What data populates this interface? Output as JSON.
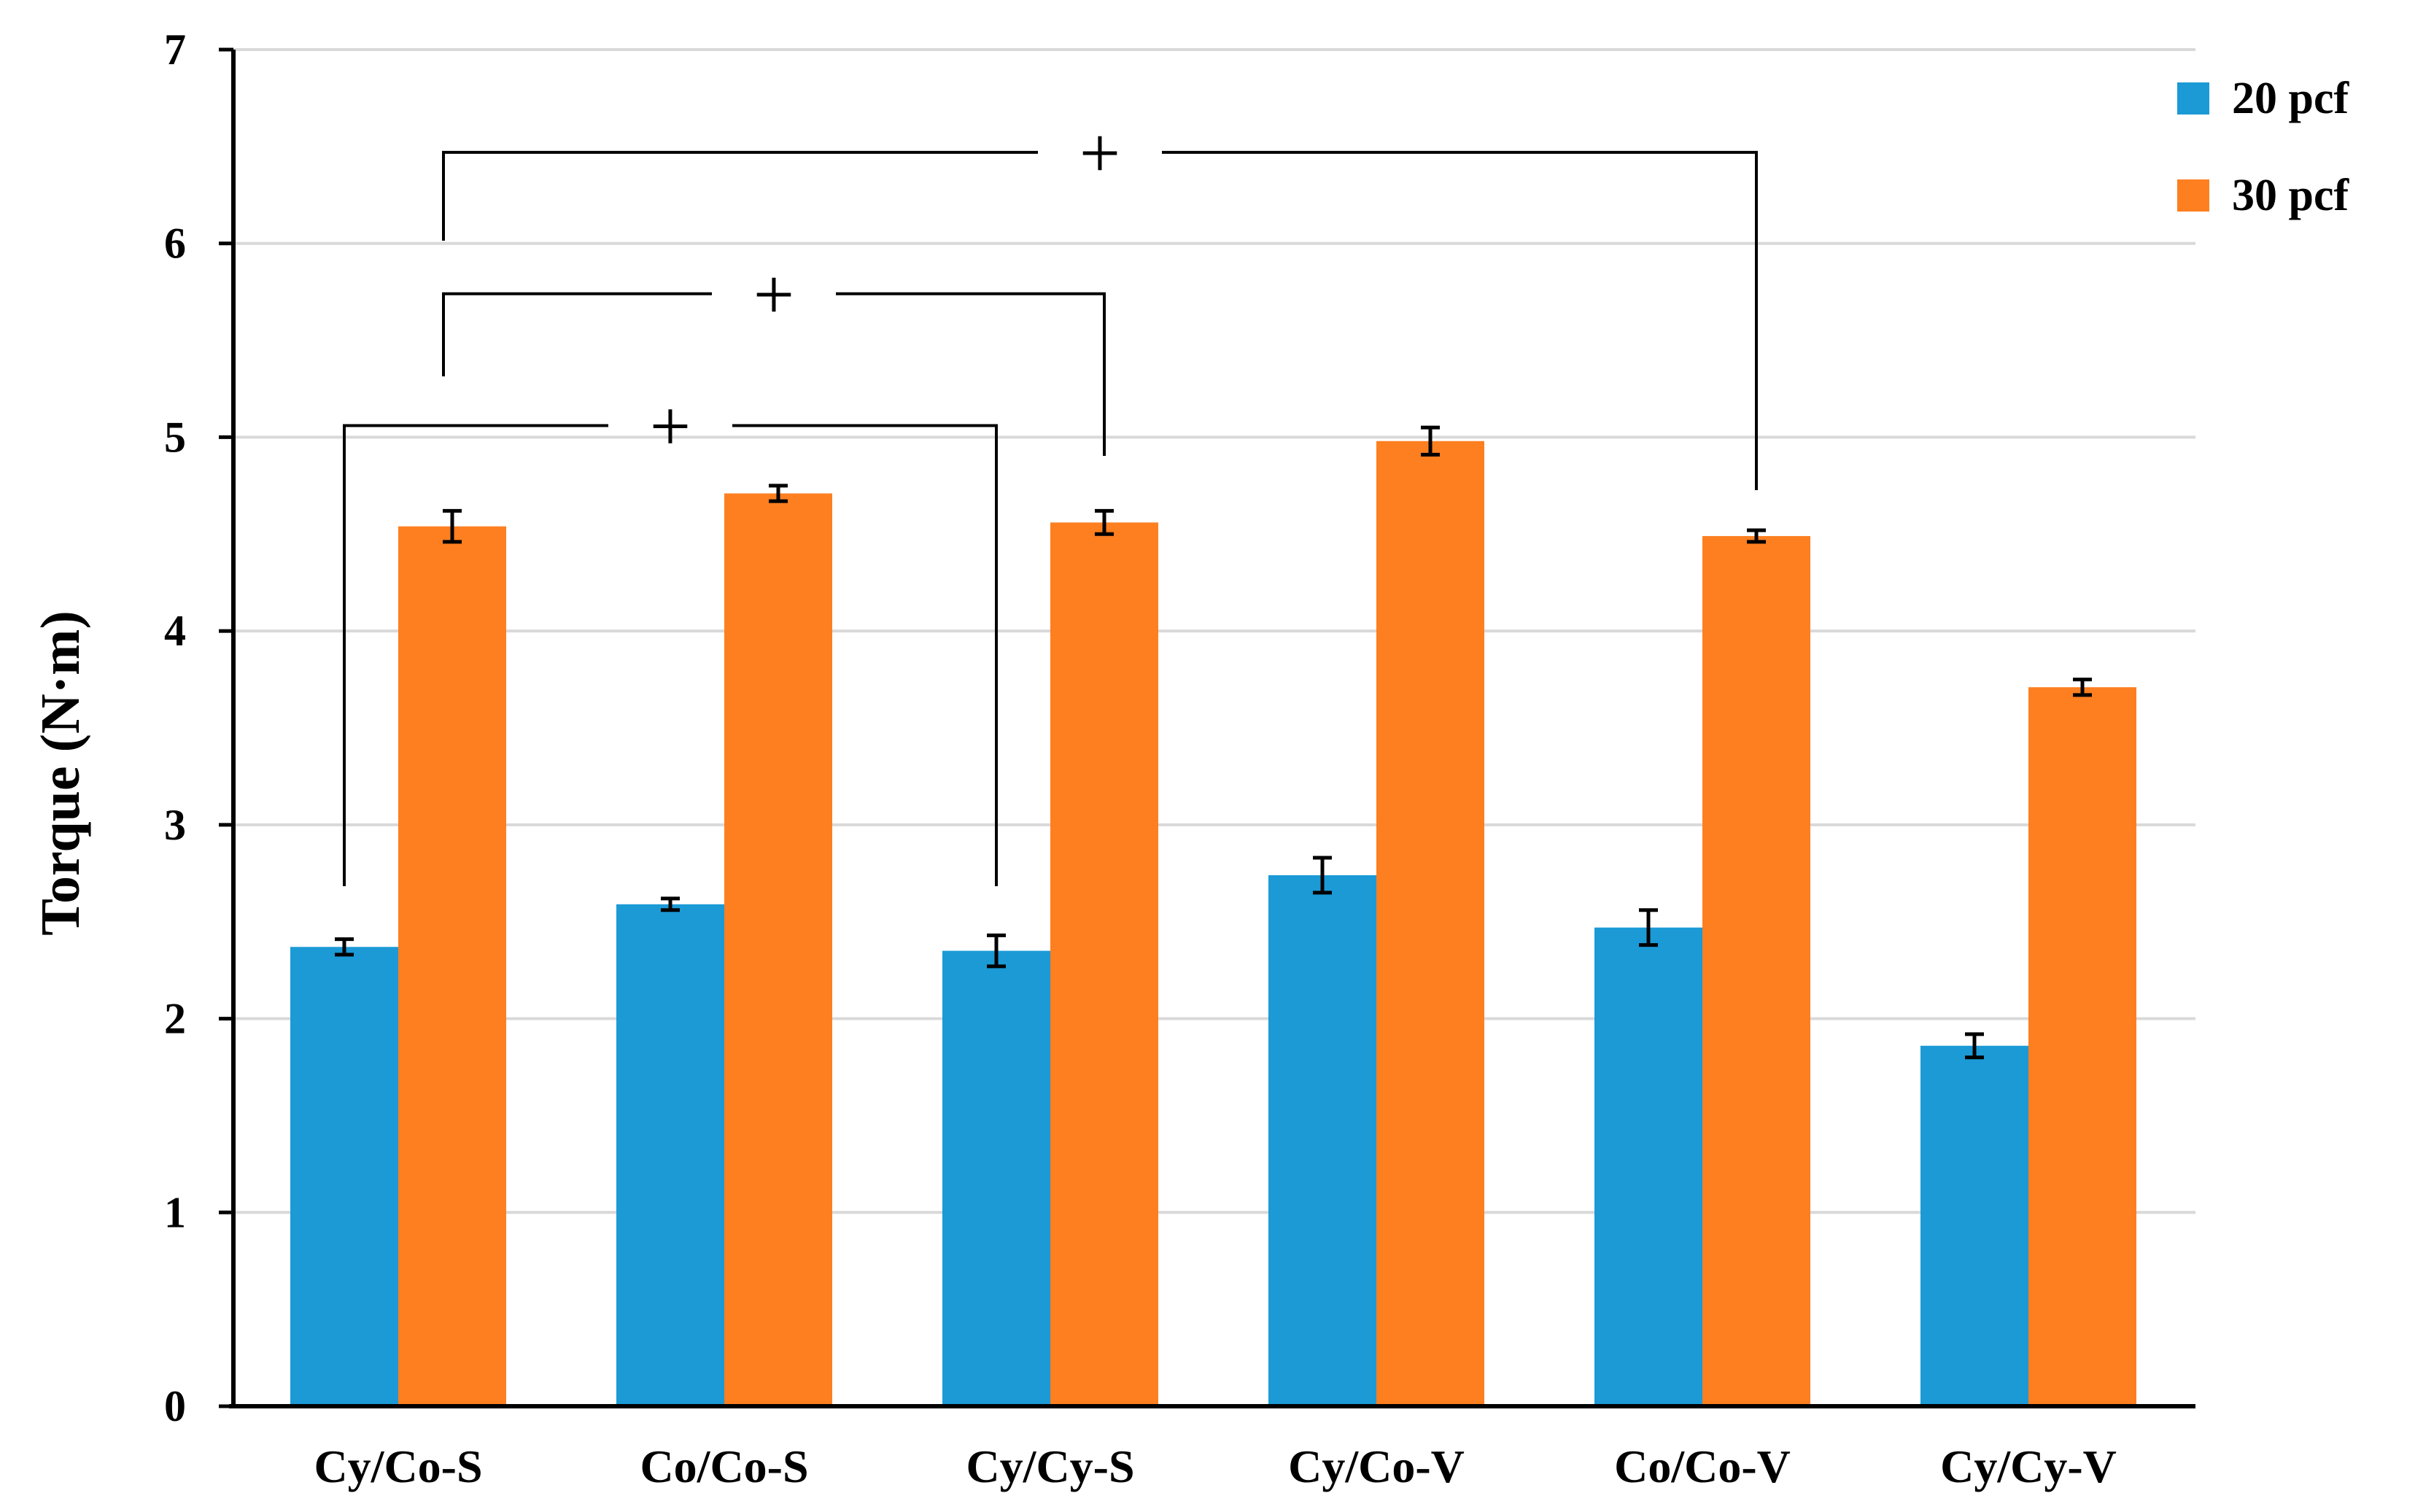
{
  "chart_data": {
    "type": "bar",
    "title": "",
    "xlabel": "",
    "ylabel": "Torque (N·m)",
    "ylim": [
      0,
      7
    ],
    "yticks": [
      "0",
      "1",
      "2",
      "3",
      "4",
      "5",
      "6",
      "7"
    ],
    "grid": true,
    "legend_position": "top-right",
    "categories": [
      "Cy/Co-S",
      "Co/Co-S",
      "Cy/Cy-S",
      "Cy/Co-V",
      "Co/Co-V",
      "Cy/Cy-V"
    ],
    "series": [
      {
        "name": "20 pcf",
        "color": "#1b9ad6",
        "values": [
          2.37,
          2.59,
          2.35,
          2.74,
          2.47,
          1.86
        ],
        "errors": [
          0.04,
          0.03,
          0.08,
          0.09,
          0.09,
          0.06
        ]
      },
      {
        "name": "30 pcf",
        "color": "#fd7f20",
        "values": [
          4.54,
          4.71,
          4.56,
          4.98,
          4.49,
          3.71
        ],
        "errors": [
          0.08,
          0.04,
          0.06,
          0.07,
          0.03,
          0.04
        ]
      }
    ],
    "annotations": [
      {
        "label": "+",
        "from": "Cy/Co-S 20 pcf",
        "to": "Cy/Cy-S 20 pcf",
        "level": 5.06
      },
      {
        "label": "+",
        "from": "Cy/Co-S",
        "to": "Cy/Cy-S 30 pcf",
        "level": 5.74
      },
      {
        "label": "+",
        "from": "Cy/Co-S",
        "to": "Co/Co-V 30 pcf",
        "level": 6.47
      }
    ]
  }
}
